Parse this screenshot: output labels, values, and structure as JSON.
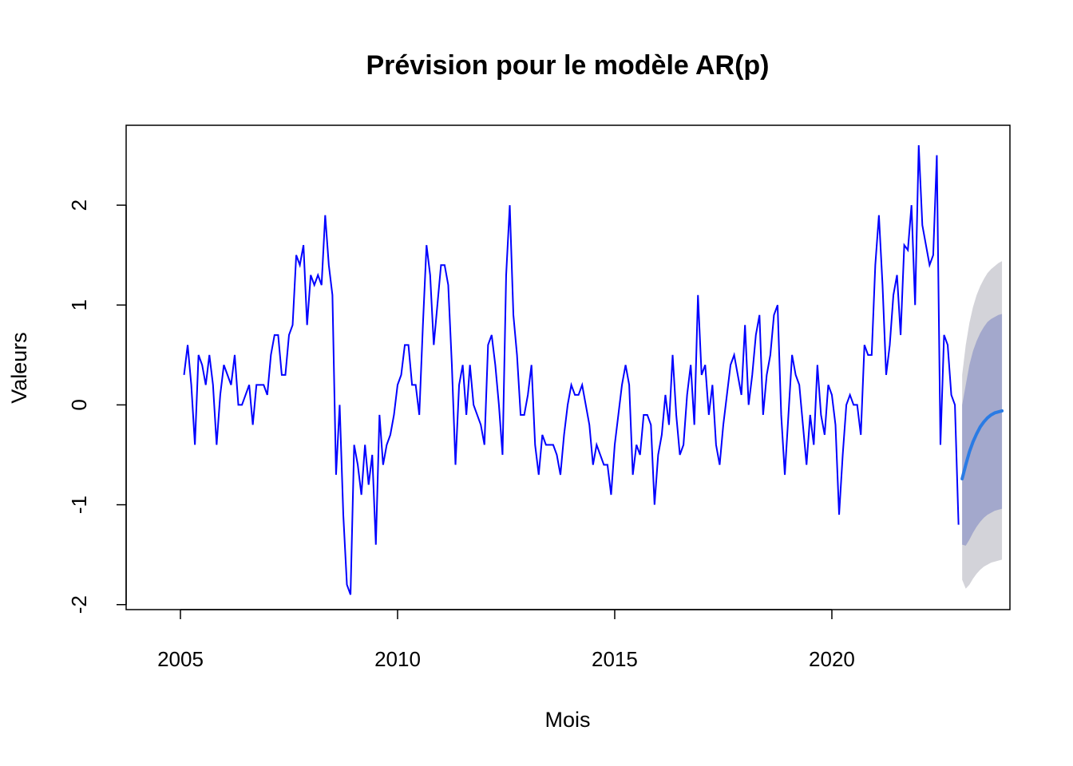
{
  "chart_data": {
    "type": "line",
    "title": "Prévision pour le modèle AR(p)",
    "xlabel": "Mois",
    "ylabel": "Valeurs",
    "xlim": [
      2003.75,
      2024.1
    ],
    "ylim": [
      -2.05,
      2.8
    ],
    "x_ticks": [
      2005,
      2010,
      2015,
      2020
    ],
    "x_tick_labels": [
      "2005",
      "2010",
      "2015",
      "2020"
    ],
    "y_ticks": [
      -2,
      -1,
      0,
      1,
      2
    ],
    "y_tick_labels": [
      "-2",
      "-1",
      "0",
      "1",
      "2"
    ],
    "grid": false,
    "legend": "none",
    "colors": {
      "observed": "#0000ff",
      "forecast": "#2a7be4",
      "band_80": "#a3a8cc",
      "band_95": "#d3d3d9"
    },
    "series": [
      {
        "x_start": 2005.083333,
        "x_step": 0.083333,
        "values": [
          0.3,
          0.6,
          0.2,
          -0.4,
          0.5,
          0.4,
          0.2,
          0.5,
          0.2,
          -0.4,
          0.1,
          0.4,
          0.3,
          0.2,
          0.5,
          0.0,
          0.0,
          0.1,
          0.2,
          -0.2,
          0.2,
          0.2,
          0.2,
          0.1,
          0.5,
          0.7,
          0.7,
          0.3,
          0.3,
          0.7,
          0.8,
          1.5,
          1.4,
          1.6,
          0.8,
          1.3,
          1.2,
          1.3,
          1.2,
          1.9,
          1.4,
          1.1,
          -0.7,
          0.0,
          -1.1,
          -1.8,
          -1.9,
          -0.4,
          -0.6,
          -0.9,
          -0.4,
          -0.8,
          -0.5,
          -1.4,
          -0.1,
          -0.6,
          -0.4,
          -0.3,
          -0.1,
          0.2,
          0.3,
          0.6,
          0.6,
          0.2,
          0.2,
          -0.1,
          0.8,
          1.6,
          1.3,
          0.6,
          1.0,
          1.4,
          1.4,
          1.2,
          0.4,
          -0.6,
          0.2,
          0.4,
          -0.1,
          0.4,
          0.0,
          -0.1,
          -0.2,
          -0.4,
          0.6,
          0.7,
          0.4,
          0.0,
          -0.5,
          1.3,
          2.0,
          0.9,
          0.5,
          -0.1,
          -0.1,
          0.1,
          0.4,
          -0.4,
          -0.7,
          -0.3,
          -0.4,
          -0.4,
          -0.4,
          -0.5,
          -0.7,
          -0.3,
          0.0,
          0.2,
          0.1,
          0.1,
          0.2,
          0.0,
          -0.2,
          -0.6,
          -0.4,
          -0.5,
          -0.6,
          -0.6,
          -0.9,
          -0.4,
          -0.1,
          0.2,
          0.4,
          0.2,
          -0.7,
          -0.4,
          -0.5,
          -0.1,
          -0.1,
          -0.2,
          -1.0,
          -0.5,
          -0.3,
          0.1,
          -0.2,
          0.5,
          -0.1,
          -0.5,
          -0.4,
          0.1,
          0.4,
          -0.2,
          1.1,
          0.3,
          0.4,
          -0.1,
          0.2,
          -0.4,
          -0.6,
          -0.2,
          0.1,
          0.4,
          0.5,
          0.3,
          0.1,
          0.8,
          0.0,
          0.3,
          0.7,
          0.9,
          -0.1,
          0.3,
          0.5,
          0.9,
          1.0,
          -0.1,
          -0.7,
          -0.1,
          0.5,
          0.3,
          0.2,
          -0.2,
          -0.6,
          -0.1,
          -0.4,
          0.4,
          -0.1,
          -0.3,
          0.2,
          0.1,
          -0.2,
          -1.1,
          -0.5,
          0.0,
          0.1,
          0.0,
          0.0,
          -0.3,
          0.6,
          0.5,
          0.5,
          1.4,
          1.9,
          1.2,
          0.3,
          0.6,
          1.1,
          1.3,
          0.7,
          1.6,
          1.55,
          2.0,
          1.0,
          2.6,
          1.8,
          1.6,
          1.4,
          1.5,
          2.5,
          -0.4,
          0.7,
          0.6,
          0.1,
          0.0,
          -1.2
        ]
      },
      {
        "x": [
          2023.0,
          2023.083,
          2023.167,
          2023.25,
          2023.333,
          2023.417,
          2023.5,
          2023.583,
          2023.667,
          2023.75,
          2023.833,
          2023.917
        ],
        "values": [
          -0.74,
          -0.6,
          -0.47,
          -0.37,
          -0.29,
          -0.22,
          -0.17,
          -0.13,
          -0.1,
          -0.08,
          -0.07,
          -0.06
        ],
        "lo80": [
          -1.4,
          -1.41,
          -1.35,
          -1.28,
          -1.22,
          -1.17,
          -1.13,
          -1.1,
          -1.08,
          -1.06,
          -1.05,
          -1.04
        ],
        "hi80": [
          0.0,
          0.2,
          0.4,
          0.54,
          0.64,
          0.72,
          0.78,
          0.83,
          0.86,
          0.88,
          0.9,
          0.91
        ],
        "lo95": [
          -1.75,
          -1.84,
          -1.8,
          -1.74,
          -1.69,
          -1.65,
          -1.62,
          -1.6,
          -1.58,
          -1.57,
          -1.56,
          -1.55
        ],
        "hi95": [
          0.3,
          0.6,
          0.82,
          0.98,
          1.1,
          1.19,
          1.26,
          1.32,
          1.36,
          1.39,
          1.42,
          1.44
        ]
      }
    ]
  }
}
